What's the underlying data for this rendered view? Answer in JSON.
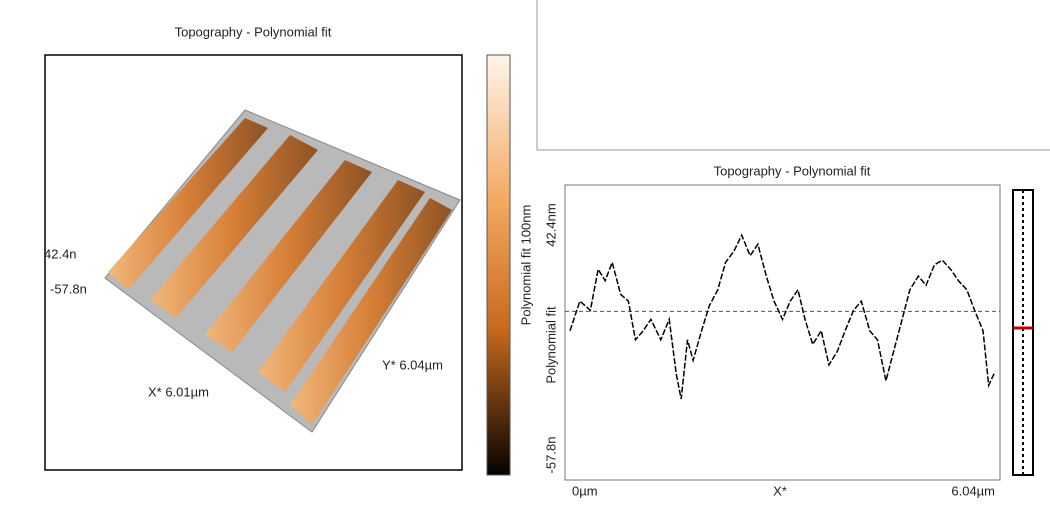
{
  "left_panel": {
    "title": "Topography - Polynomial fit",
    "z_max_label": "42.4n",
    "z_min_label": "-57.8n",
    "x_label": "X* 6.01µm",
    "y_label": "Y* 6.04µm",
    "colorbar_label": "Polynomial fit 100nm"
  },
  "right_panel": {
    "title": "Topography - Polynomial fit",
    "y_bottom_label": "-57.8n",
    "y_axis_label": "Polynomial fit",
    "y_top_label": "42.4nm",
    "x_left_label": "0µm",
    "x_mid_label": "X*",
    "x_right_label": "6.04µm",
    "profile": {
      "xlim": [
        0,
        6.04
      ],
      "ylim": [
        -57.8,
        42.4
      ],
      "x": [
        0,
        0.14,
        0.29,
        0.4,
        0.5,
        0.6,
        0.72,
        0.83,
        0.93,
        1.04,
        1.15,
        1.29,
        1.41,
        1.51,
        1.58,
        1.67,
        1.75,
        1.87,
        1.98,
        2.1,
        2.21,
        2.33,
        2.44,
        2.56,
        2.67,
        2.79,
        2.9,
        3.02,
        3.13,
        3.24,
        3.34,
        3.45,
        3.57,
        3.68,
        3.8,
        3.91,
        4.03,
        4.14,
        4.26,
        4.37,
        4.49,
        4.6,
        4.72,
        4.83,
        4.95,
        5.06,
        5.18,
        5.29,
        5.41,
        5.52,
        5.64,
        5.75,
        5.87,
        5.95,
        6.04
      ],
      "values": [
        -1,
        12,
        8,
        26,
        21,
        29,
        15,
        12,
        -5,
        -1,
        4,
        -5,
        4,
        -20,
        -31,
        -5,
        -14,
        -1,
        10,
        17,
        29,
        34,
        41,
        32,
        37,
        23,
        12,
        4,
        12,
        17,
        4,
        -7,
        -1,
        -16,
        -10,
        -1,
        8,
        12,
        -1,
        -5,
        -23,
        -10,
        4,
        17,
        23,
        19,
        28,
        30,
        26,
        21,
        17,
        8,
        -1,
        -25,
        -19
      ]
    }
  }
}
